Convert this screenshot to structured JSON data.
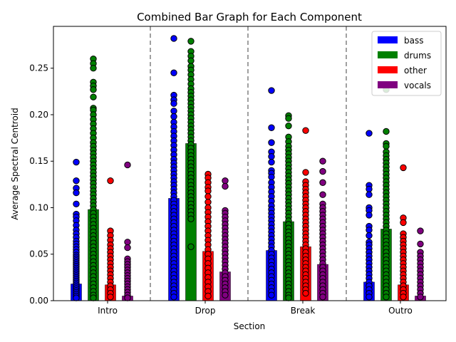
{
  "chart_data": {
    "type": "bar",
    "title": "Combined Bar Graph for Each Component",
    "xlabel": "Section",
    "ylabel": "Average Spectral Centroid",
    "categories": [
      "Intro",
      "Drop",
      "Break",
      "Outro"
    ],
    "ylim": [
      0,
      0.295
    ],
    "yticks": [
      "0.00",
      "0.05",
      "0.10",
      "0.15",
      "0.20",
      "0.25"
    ],
    "ytick_values": [
      0,
      0.05,
      0.1,
      0.15,
      0.2,
      0.25
    ],
    "grid": false,
    "legend_position": "top-right",
    "section_separators": "dashed",
    "series": [
      {
        "name": "bass",
        "color": "#0000ff",
        "values": [
          0.018,
          0.11,
          0.054,
          0.02
        ],
        "points": [
          [
            0.149,
            0.129,
            0.121,
            0.116,
            0.104,
            0.093,
            0.09,
            0.086,
            0.081,
            0.076,
            0.072,
            0.068,
            0.064,
            0.061,
            0.058,
            0.055,
            0.052,
            0.049,
            0.047,
            0.045,
            0.043,
            0.041,
            0.039,
            0.037,
            0.035,
            0.033,
            0.031,
            0.029,
            0.027,
            0.025,
            0.023,
            0.021,
            0.019,
            0.017,
            0.015,
            0.013,
            0.011,
            0.009,
            0.007,
            0.005,
            0.003
          ],
          [
            0.282,
            0.245,
            0.221,
            0.216,
            0.212,
            0.204,
            0.198,
            0.192,
            0.187,
            0.182,
            0.177,
            0.172,
            0.167,
            0.162,
            0.157,
            0.152,
            0.148,
            0.144,
            0.14,
            0.136,
            0.132,
            0.128,
            0.124,
            0.12,
            0.116,
            0.112,
            0.108,
            0.104,
            0.1,
            0.096,
            0.092,
            0.088,
            0.084,
            0.08,
            0.076,
            0.072,
            0.068,
            0.064,
            0.06,
            0.056,
            0.052,
            0.048,
            0.044,
            0.04,
            0.036,
            0.032,
            0.028,
            0.024,
            0.02,
            0.016,
            0.012,
            0.008,
            0.004
          ],
          [
            0.226,
            0.186,
            0.17,
            0.16,
            0.155,
            0.149,
            0.14,
            0.137,
            0.133,
            0.127,
            0.122,
            0.117,
            0.112,
            0.107,
            0.102,
            0.098,
            0.094,
            0.09,
            0.086,
            0.082,
            0.078,
            0.074,
            0.07,
            0.066,
            0.062,
            0.058,
            0.054,
            0.05,
            0.046,
            0.042,
            0.038,
            0.034,
            0.03,
            0.026,
            0.022,
            0.018,
            0.014,
            0.01,
            0.006
          ],
          [
            0.18,
            0.124,
            0.12,
            0.114,
            0.1,
            0.097,
            0.092,
            0.08,
            0.076,
            0.07,
            0.063,
            0.06,
            0.056,
            0.052,
            0.048,
            0.044,
            0.04,
            0.036,
            0.032,
            0.028,
            0.024,
            0.02,
            0.016,
            0.012,
            0.008,
            0.004
          ]
        ]
      },
      {
        "name": "drums",
        "color": "#008000",
        "values": [
          0.098,
          0.169,
          0.085,
          0.077
        ],
        "points": [
          [
            0.26,
            0.255,
            0.25,
            0.235,
            0.231,
            0.227,
            0.219,
            0.207,
            0.205,
            0.2,
            0.195,
            0.19,
            0.185,
            0.18,
            0.175,
            0.17,
            0.166,
            0.162,
            0.158,
            0.154,
            0.15,
            0.146,
            0.142,
            0.138,
            0.134,
            0.13,
            0.126,
            0.122,
            0.118,
            0.114,
            0.11,
            0.106,
            0.102,
            0.098,
            0.094,
            0.09,
            0.086,
            0.082,
            0.078,
            0.074,
            0.07,
            0.066,
            0.062,
            0.058,
            0.054,
            0.05,
            0.046,
            0.042,
            0.038,
            0.034,
            0.03,
            0.026,
            0.022,
            0.018,
            0.014,
            0.01,
            0.006,
            0.003
          ],
          [
            0.279,
            0.268,
            0.263,
            0.258,
            0.252,
            0.248,
            0.243,
            0.238,
            0.233,
            0.228,
            0.224,
            0.22,
            0.216,
            0.212,
            0.208,
            0.204,
            0.2,
            0.196,
            0.192,
            0.188,
            0.184,
            0.18,
            0.176,
            0.172,
            0.168,
            0.164,
            0.16,
            0.156,
            0.152,
            0.148,
            0.144,
            0.14,
            0.136,
            0.132,
            0.128,
            0.124,
            0.12,
            0.116,
            0.112,
            0.108,
            0.104,
            0.1,
            0.096,
            0.092,
            0.088,
            0.058
          ],
          [
            0.199,
            0.196,
            0.188,
            0.176,
            0.171,
            0.166,
            0.162,
            0.158,
            0.154,
            0.15,
            0.146,
            0.142,
            0.138,
            0.134,
            0.13,
            0.126,
            0.122,
            0.118,
            0.114,
            0.11,
            0.106,
            0.102,
            0.098,
            0.094,
            0.09,
            0.086,
            0.082,
            0.078,
            0.074,
            0.07,
            0.066,
            0.062,
            0.058,
            0.054,
            0.05,
            0.046,
            0.042,
            0.038,
            0.034,
            0.03,
            0.026,
            0.022,
            0.018,
            0.014,
            0.01,
            0.006,
            0.003
          ],
          [
            0.227,
            0.182,
            0.169,
            0.166,
            0.16,
            0.156,
            0.152,
            0.148,
            0.144,
            0.14,
            0.136,
            0.132,
            0.128,
            0.124,
            0.12,
            0.116,
            0.112,
            0.108,
            0.104,
            0.1,
            0.096,
            0.092,
            0.088,
            0.084,
            0.08,
            0.076,
            0.072,
            0.068,
            0.064,
            0.06,
            0.056,
            0.052,
            0.048,
            0.044,
            0.04,
            0.036,
            0.032,
            0.028,
            0.024,
            0.02,
            0.016,
            0.012,
            0.008,
            0.004
          ]
        ]
      },
      {
        "name": "other",
        "color": "#ff0000",
        "values": [
          0.017,
          0.053,
          0.058,
          0.017
        ],
        "points": [
          [
            0.129,
            0.075,
            0.07,
            0.065,
            0.06,
            0.056,
            0.052,
            0.048,
            0.044,
            0.04,
            0.036,
            0.032,
            0.028,
            0.024,
            0.02,
            0.016,
            0.012,
            0.008,
            0.004
          ],
          [
            0.136,
            0.132,
            0.127,
            0.122,
            0.118,
            0.112,
            0.106,
            0.1,
            0.095,
            0.09,
            0.085,
            0.08,
            0.075,
            0.07,
            0.065,
            0.06,
            0.055,
            0.05,
            0.045,
            0.04,
            0.035,
            0.03,
            0.025,
            0.02,
            0.015,
            0.01,
            0.005
          ],
          [
            0.183,
            0.138,
            0.128,
            0.124,
            0.12,
            0.116,
            0.112,
            0.108,
            0.104,
            0.1,
            0.096,
            0.092,
            0.088,
            0.084,
            0.08,
            0.076,
            0.072,
            0.068,
            0.064,
            0.06,
            0.056,
            0.052,
            0.048,
            0.044,
            0.04,
            0.036,
            0.032,
            0.028,
            0.024,
            0.02,
            0.016,
            0.012,
            0.008
          ],
          [
            0.143,
            0.089,
            0.084,
            0.072,
            0.068,
            0.064,
            0.06,
            0.056,
            0.052,
            0.048,
            0.044,
            0.04,
            0.036,
            0.032,
            0.028,
            0.024,
            0.02,
            0.016,
            0.012,
            0.008,
            0.004
          ]
        ]
      },
      {
        "name": "vocals",
        "color": "#800080",
        "values": [
          0.005,
          0.031,
          0.039,
          0.005
        ],
        "points": [
          [
            0.146,
            0.063,
            0.057,
            0.045,
            0.042,
            0.039,
            0.036,
            0.033,
            0.03,
            0.027,
            0.024,
            0.021,
            0.018,
            0.015,
            0.012,
            0.009,
            0.006,
            0.003
          ],
          [
            0.129,
            0.123,
            0.097,
            0.094,
            0.09,
            0.086,
            0.082,
            0.078,
            0.074,
            0.07,
            0.066,
            0.062,
            0.058,
            0.054,
            0.05,
            0.046,
            0.042,
            0.038,
            0.034,
            0.03,
            0.026,
            0.022,
            0.018,
            0.014,
            0.01,
            0.006
          ],
          [
            0.15,
            0.139,
            0.127,
            0.114,
            0.104,
            0.1,
            0.096,
            0.092,
            0.088,
            0.084,
            0.08,
            0.076,
            0.072,
            0.068,
            0.064,
            0.06,
            0.056,
            0.052,
            0.048,
            0.044,
            0.04,
            0.036,
            0.032,
            0.028,
            0.024,
            0.02,
            0.016,
            0.012,
            0.008,
            0.004
          ],
          [
            0.075,
            0.061,
            0.052,
            0.048,
            0.044,
            0.04,
            0.036,
            0.032,
            0.028,
            0.024,
            0.02,
            0.016,
            0.012,
            0.008,
            0.004
          ]
        ]
      }
    ]
  }
}
